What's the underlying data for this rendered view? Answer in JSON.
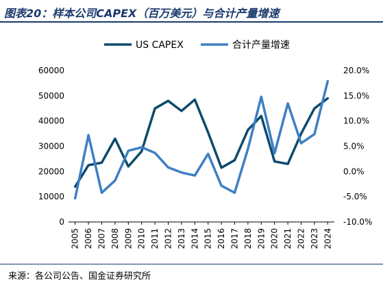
{
  "page": {
    "title": "图表20：样本公司CAPEX（百万美元）与合计产量增速",
    "source": "来源：各公司公告、国金证券研究所"
  },
  "chart_data": {
    "type": "line",
    "categories": [
      "2005",
      "2006",
      "2007",
      "2008",
      "2009",
      "2010",
      "2011",
      "2012",
      "2013",
      "2014",
      "2015",
      "2016",
      "2017",
      "2018",
      "2019",
      "2020",
      "2021",
      "2022",
      "2023",
      "2024"
    ],
    "series": [
      {
        "name": "US CAPEX",
        "axis": "left",
        "color": "#0d4a6b",
        "values": [
          14000,
          22500,
          23500,
          33000,
          22000,
          28000,
          45000,
          48000,
          44000,
          48500,
          35500,
          21500,
          24500,
          36500,
          42000,
          24000,
          23000,
          35000,
          45000,
          49000
        ]
      },
      {
        "name": "合计产量增速",
        "axis": "right",
        "color": "#3d7fc3",
        "values": [
          -5.3,
          7.2,
          -4.2,
          -1.8,
          4.1,
          4.8,
          3.7,
          0.8,
          -0.2,
          -0.8,
          3.5,
          -2.8,
          -4.2,
          4.5,
          14.8,
          3.6,
          13.5,
          5.6,
          7.4,
          17.9
        ]
      }
    ],
    "y_left": {
      "min": 0,
      "max": 60000,
      "ticks": [
        "0",
        "10000",
        "20000",
        "30000",
        "40000",
        "50000",
        "60000"
      ]
    },
    "y_right": {
      "min": -10,
      "max": 20,
      "ticks": [
        "-10.0%",
        "-5.0%",
        "0.0%",
        "5.0%",
        "10.0%",
        "15.0%",
        "20.0%"
      ]
    },
    "grid": false,
    "legend_position": "top-center"
  }
}
